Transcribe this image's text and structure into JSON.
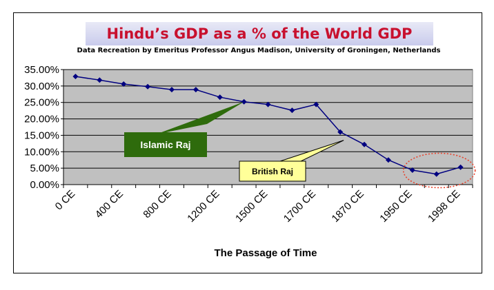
{
  "chart_data": {
    "type": "line",
    "title": "Hindu’s GDP as a % of the World GDP",
    "subtitle": "Data Recreation by Emeritus Professor Angus Madison, University of  Groningen, Netherlands",
    "xlabel": "The Passage of Time",
    "ylabel": "",
    "ylim": [
      0,
      35
    ],
    "yticks": [
      "0.00%",
      "5.00%",
      "10.00%",
      "15.00%",
      "20.00%",
      "25.00%",
      "30.00%",
      "35.00%"
    ],
    "xtick_labels": [
      "0 CE",
      "400 CE",
      "800 CE",
      "1200 CE",
      "1500 CE",
      "1700 CE",
      "1870 CE",
      "1950 CE",
      "1998 CE"
    ],
    "grid": true,
    "series": [
      {
        "values": [
          32.9,
          31.8,
          30.6,
          29.8,
          28.9,
          28.9,
          26.6,
          25.2,
          24.4,
          22.6,
          24.4,
          16.0,
          12.2,
          7.5,
          4.4,
          3.2,
          5.3
        ],
        "color": "#000080"
      }
    ],
    "annotations": [
      {
        "text": "Islamic Raj",
        "fill": "#2e6b0c",
        "text_color": "#ffffff"
      },
      {
        "text": "British Raj",
        "fill": "#ffff99",
        "text_color": "#000000"
      }
    ]
  }
}
